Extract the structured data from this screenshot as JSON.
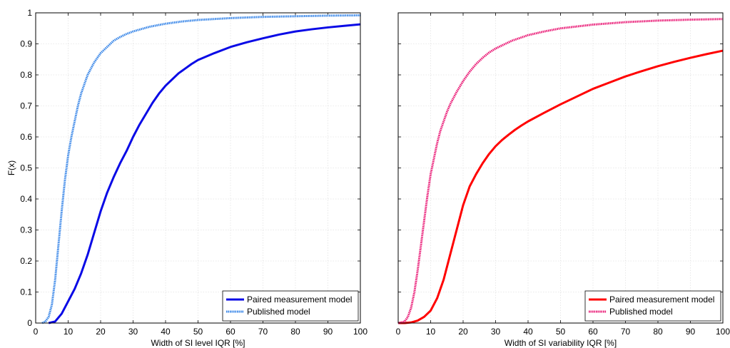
{
  "chart_data": [
    {
      "type": "line",
      "xlabel": "Width of SI level IQR [%]",
      "ylabel": "F(x)",
      "xlim": [
        0,
        100
      ],
      "ylim": [
        0,
        1
      ],
      "xticks": [
        0,
        10,
        20,
        30,
        40,
        50,
        60,
        70,
        80,
        90,
        100
      ],
      "yticks": [
        0,
        0.1,
        0.2,
        0.3,
        0.4,
        0.5,
        0.6,
        0.7,
        0.8,
        0.9,
        1
      ],
      "ytick_labels": [
        "0",
        "0.1",
        "0.2",
        "0.3",
        "0.4",
        "0.5",
        "0.6",
        "0.7",
        "0.8",
        "0.9",
        "1"
      ],
      "grid": true,
      "legend_position": "bottom-right",
      "series": [
        {
          "name": "Paired measurement model",
          "color": "#0a0ae6",
          "style": "solid",
          "x": [
            4,
            6,
            8,
            10,
            12,
            14,
            16,
            18,
            20,
            22,
            24,
            26,
            28,
            30,
            32,
            34,
            36,
            38,
            40,
            42,
            44,
            46,
            48,
            50,
            55,
            60,
            65,
            70,
            75,
            80,
            85,
            90,
            95,
            100
          ],
          "y": [
            0,
            0.005,
            0.03,
            0.07,
            0.11,
            0.16,
            0.22,
            0.29,
            0.36,
            0.42,
            0.47,
            0.515,
            0.555,
            0.6,
            0.64,
            0.675,
            0.71,
            0.74,
            0.765,
            0.785,
            0.805,
            0.82,
            0.835,
            0.848,
            0.87,
            0.89,
            0.905,
            0.918,
            0.93,
            0.94,
            0.947,
            0.953,
            0.958,
            0.963
          ]
        },
        {
          "name": "Published model",
          "color": "#3a87e8",
          "style": "dotted",
          "x": [
            2,
            3,
            4,
            5,
            6,
            7,
            8,
            9,
            10,
            11,
            12,
            13,
            14,
            15,
            16,
            17,
            18,
            19,
            20,
            22,
            24,
            26,
            28,
            30,
            35,
            40,
            45,
            50,
            60,
            70,
            80,
            90,
            100
          ],
          "y": [
            0,
            0.005,
            0.02,
            0.06,
            0.14,
            0.25,
            0.36,
            0.46,
            0.54,
            0.6,
            0.65,
            0.7,
            0.74,
            0.77,
            0.8,
            0.82,
            0.84,
            0.855,
            0.87,
            0.89,
            0.91,
            0.922,
            0.932,
            0.94,
            0.955,
            0.965,
            0.972,
            0.977,
            0.983,
            0.987,
            0.989,
            0.991,
            0.992
          ]
        }
      ]
    },
    {
      "type": "line",
      "xlabel": "Width of SI variability IQR [%]",
      "ylabel": "",
      "xlim": [
        0,
        100
      ],
      "ylim": [
        0,
        1
      ],
      "xticks": [
        0,
        10,
        20,
        30,
        40,
        50,
        60,
        70,
        80,
        90,
        100
      ],
      "yticks": [
        0,
        0.1,
        0.2,
        0.3,
        0.4,
        0.5,
        0.6,
        0.7,
        0.8,
        0.9,
        1
      ],
      "ytick_labels": [],
      "grid": true,
      "legend_position": "bottom-right",
      "series": [
        {
          "name": "Paired measurement model",
          "color": "#ff0000",
          "style": "solid",
          "x": [
            0,
            2,
            4,
            6,
            8,
            10,
            12,
            14,
            16,
            18,
            20,
            22,
            24,
            26,
            28,
            30,
            32,
            34,
            36,
            38,
            40,
            45,
            50,
            55,
            60,
            65,
            70,
            75,
            80,
            85,
            90,
            95,
            100
          ],
          "y": [
            0,
            0,
            0.002,
            0.008,
            0.02,
            0.04,
            0.08,
            0.14,
            0.22,
            0.3,
            0.38,
            0.44,
            0.48,
            0.515,
            0.545,
            0.57,
            0.59,
            0.607,
            0.623,
            0.637,
            0.65,
            0.678,
            0.705,
            0.73,
            0.755,
            0.775,
            0.795,
            0.812,
            0.828,
            0.842,
            0.855,
            0.867,
            0.878
          ]
        },
        {
          "name": "Published model",
          "color": "#ea1e78",
          "style": "dotted",
          "x": [
            0,
            1,
            2,
            3,
            4,
            5,
            6,
            7,
            8,
            9,
            10,
            11,
            12,
            13,
            14,
            15,
            16,
            18,
            20,
            22,
            24,
            26,
            28,
            30,
            35,
            40,
            45,
            50,
            60,
            70,
            80,
            90,
            100
          ],
          "y": [
            0,
            0.002,
            0.005,
            0.02,
            0.05,
            0.1,
            0.17,
            0.25,
            0.33,
            0.41,
            0.48,
            0.53,
            0.58,
            0.62,
            0.65,
            0.68,
            0.705,
            0.745,
            0.78,
            0.81,
            0.835,
            0.855,
            0.872,
            0.885,
            0.91,
            0.928,
            0.94,
            0.95,
            0.962,
            0.97,
            0.975,
            0.978,
            0.98
          ]
        }
      ]
    }
  ]
}
